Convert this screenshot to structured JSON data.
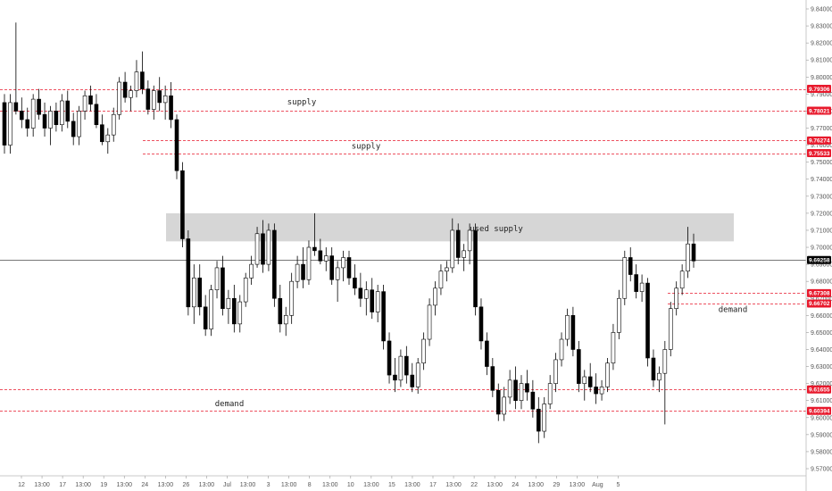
{
  "chart_data": {
    "type": "candlestick",
    "x_ticks": [
      "12",
      "13:00",
      "17",
      "13:00",
      "19",
      "13:00",
      "24",
      "13:00",
      "26",
      "13:00",
      "Jul",
      "13:00",
      "3",
      "13:00",
      "8",
      "13:00",
      "10",
      "13:00",
      "15",
      "13:00",
      "17",
      "13:00",
      "22",
      "13:00",
      "24",
      "13:00",
      "29",
      "13:00",
      "Aug",
      "5"
    ],
    "y_ticks": [
      "9.84000",
      "9.83000",
      "9.82000",
      "9.81000",
      "9.80000",
      "9.79000",
      "9.78000",
      "9.77000",
      "9.76000",
      "9.75000",
      "9.74000",
      "9.73000",
      "9.72000",
      "9.71000",
      "9.70000",
      "9.69000",
      "9.68000",
      "9.67000",
      "9.66000",
      "9.65000",
      "9.64000",
      "9.63000",
      "9.62000",
      "9.61000",
      "9.60000",
      "9.59000",
      "9.58000",
      "9.57000"
    ],
    "y_values": [
      9.84,
      9.83,
      9.82,
      9.81,
      9.8,
      9.79,
      9.78,
      9.77,
      9.76,
      9.75,
      9.74,
      9.73,
      9.72,
      9.71,
      9.7,
      9.69,
      9.68,
      9.67,
      9.66,
      9.65,
      9.64,
      9.63,
      9.62,
      9.61,
      9.6,
      9.59,
      9.58,
      9.57
    ],
    "ylim": [
      9.5722,
      9.8438
    ],
    "current_price": {
      "label": "9.69258",
      "value": 9.69258
    },
    "levels": [
      {
        "label": "9.79306",
        "value": 9.79306,
        "color": "#e8192c"
      },
      {
        "label": "9.78021",
        "value": 9.78021,
        "color": "#e8192c"
      },
      {
        "label": "9.76274",
        "value": 9.76274,
        "color": "#e8192c"
      },
      {
        "label": "9.75533",
        "value": 9.75533,
        "color": "#e8192c"
      },
      {
        "label": "9.67308",
        "value": 9.67308,
        "color": "#e8192c"
      },
      {
        "label": "9.66702",
        "value": 9.66702,
        "color": "#e8192c"
      },
      {
        "label": "9.61655",
        "value": 9.61655,
        "color": "#e8192c"
      },
      {
        "label": "9.60394",
        "value": 9.60394,
        "color": "#e8192c"
      }
    ],
    "zones": [
      {
        "label": "used supply",
        "top": 9.72,
        "bottom": 9.7035,
        "fill": "#d6d6d6"
      }
    ],
    "annotations": [
      {
        "text": "supply",
        "price": 9.7855
      },
      {
        "text": "supply",
        "price": 9.7595
      },
      {
        "text": "used supply",
        "price": 9.711
      },
      {
        "text": "demand",
        "price": 9.6635
      },
      {
        "text": "demand",
        "price": 9.6083
      }
    ],
    "candles": [
      [
        9.785,
        9.79,
        9.755,
        9.76
      ],
      [
        9.76,
        9.79,
        9.755,
        9.785
      ],
      [
        9.785,
        9.832,
        9.778,
        9.78
      ],
      [
        9.78,
        9.788,
        9.77,
        9.775
      ],
      [
        9.775,
        9.782,
        9.765,
        9.77
      ],
      [
        9.77,
        9.79,
        9.765,
        9.787
      ],
      [
        9.787,
        9.793,
        9.775,
        9.778
      ],
      [
        9.778,
        9.785,
        9.765,
        9.77
      ],
      [
        9.77,
        9.783,
        9.76,
        9.78
      ],
      [
        9.78,
        9.785,
        9.768,
        9.772
      ],
      [
        9.772,
        9.79,
        9.768,
        9.786
      ],
      [
        9.786,
        9.792,
        9.77,
        9.774
      ],
      [
        9.774,
        9.779,
        9.76,
        9.765
      ],
      [
        9.765,
        9.783,
        9.76,
        9.78
      ],
      [
        9.78,
        9.792,
        9.775,
        9.789
      ],
      [
        9.789,
        9.795,
        9.78,
        9.784
      ],
      [
        9.784,
        9.79,
        9.77,
        9.772
      ],
      [
        9.772,
        9.778,
        9.76,
        9.762
      ],
      [
        9.762,
        9.77,
        9.755,
        9.766
      ],
      [
        9.766,
        9.782,
        9.762,
        9.778
      ],
      [
        9.778,
        9.8,
        9.775,
        9.797
      ],
      [
        9.797,
        9.803,
        9.785,
        9.788
      ],
      [
        9.788,
        9.795,
        9.78,
        9.792
      ],
      [
        9.792,
        9.81,
        9.788,
        9.803
      ],
      [
        9.803,
        9.815,
        9.79,
        9.793
      ],
      [
        9.793,
        9.798,
        9.778,
        9.781
      ],
      [
        9.781,
        9.795,
        9.775,
        9.792
      ],
      [
        9.792,
        9.8,
        9.78,
        9.785
      ],
      [
        9.785,
        9.795,
        9.775,
        9.789
      ],
      [
        9.789,
        9.797,
        9.77,
        9.775
      ],
      [
        9.775,
        9.778,
        9.74,
        9.745
      ],
      [
        9.745,
        9.75,
        9.7,
        9.705
      ],
      [
        9.705,
        9.71,
        9.66,
        9.665
      ],
      [
        9.665,
        9.69,
        9.655,
        9.682
      ],
      [
        9.682,
        9.69,
        9.66,
        9.665
      ],
      [
        9.665,
        9.672,
        9.648,
        9.652
      ],
      [
        9.652,
        9.678,
        9.648,
        9.675
      ],
      [
        9.675,
        9.692,
        9.67,
        9.688
      ],
      [
        9.688,
        9.695,
        9.66,
        9.664
      ],
      [
        9.664,
        9.675,
        9.655,
        9.67
      ],
      [
        9.67,
        9.678,
        9.65,
        9.655
      ],
      [
        9.655,
        9.672,
        9.65,
        9.668
      ],
      [
        9.668,
        9.685,
        9.665,
        9.682
      ],
      [
        9.682,
        9.695,
        9.678,
        9.69
      ],
      [
        9.69,
        9.712,
        9.688,
        9.708
      ],
      [
        9.708,
        9.716,
        9.685,
        9.69
      ],
      [
        9.69,
        9.714,
        9.686,
        9.71
      ],
      [
        9.71,
        9.714,
        9.665,
        9.67
      ],
      [
        9.67,
        9.678,
        9.65,
        9.655
      ],
      [
        9.655,
        9.665,
        9.648,
        9.66
      ],
      [
        9.66,
        9.685,
        9.655,
        9.68
      ],
      [
        9.68,
        9.695,
        9.676,
        9.69
      ],
      [
        9.69,
        9.7,
        9.676,
        9.681
      ],
      [
        9.681,
        9.704,
        9.678,
        9.7
      ],
      [
        9.7,
        9.72,
        9.695,
        9.698
      ],
      [
        9.698,
        9.705,
        9.69,
        9.692
      ],
      [
        9.692,
        9.7,
        9.686,
        9.695
      ],
      [
        9.695,
        9.7,
        9.678,
        9.681
      ],
      [
        9.681,
        9.692,
        9.668,
        9.688
      ],
      [
        9.688,
        9.698,
        9.68,
        9.694
      ],
      [
        9.694,
        9.698,
        9.678,
        9.682
      ],
      [
        9.682,
        9.69,
        9.672,
        9.676
      ],
      [
        9.676,
        9.685,
        9.665,
        9.67
      ],
      [
        9.67,
        9.68,
        9.66,
        9.675
      ],
      [
        9.675,
        9.682,
        9.658,
        9.662
      ],
      [
        9.662,
        9.678,
        9.656,
        9.674
      ],
      [
        9.674,
        9.678,
        9.64,
        9.645
      ],
      [
        9.645,
        9.65,
        9.62,
        9.625
      ],
      [
        9.625,
        9.635,
        9.615,
        9.622
      ],
      [
        9.622,
        9.64,
        9.618,
        9.636
      ],
      [
        9.636,
        9.642,
        9.62,
        9.625
      ],
      [
        9.625,
        9.632,
        9.615,
        9.618
      ],
      [
        9.618,
        9.635,
        9.614,
        9.632
      ],
      [
        9.632,
        9.65,
        9.628,
        9.646
      ],
      [
        9.646,
        9.67,
        9.642,
        9.666
      ],
      [
        9.666,
        9.68,
        9.66,
        9.676
      ],
      [
        9.676,
        9.69,
        9.672,
        9.686
      ],
      [
        9.686,
        9.692,
        9.68,
        9.688
      ],
      [
        9.688,
        9.717,
        9.685,
        9.71
      ],
      [
        9.71,
        9.714,
        9.69,
        9.694
      ],
      [
        9.694,
        9.702,
        9.686,
        9.698
      ],
      [
        9.698,
        9.714,
        9.69,
        9.71
      ],
      [
        9.71,
        9.714,
        9.66,
        9.665
      ],
      [
        9.665,
        9.67,
        9.64,
        9.645
      ],
      [
        9.645,
        9.65,
        9.625,
        9.63
      ],
      [
        9.63,
        9.635,
        9.612,
        9.616
      ],
      [
        9.616,
        9.62,
        9.598,
        9.602
      ],
      [
        9.602,
        9.618,
        9.598,
        9.612
      ],
      [
        9.612,
        9.628,
        9.608,
        9.622
      ],
      [
        9.622,
        9.63,
        9.605,
        9.61
      ],
      [
        9.61,
        9.625,
        9.605,
        9.62
      ],
      [
        9.62,
        9.628,
        9.61,
        9.615
      ],
      [
        9.615,
        9.622,
        9.6,
        9.605
      ],
      [
        9.605,
        9.612,
        9.585,
        9.592
      ],
      [
        9.592,
        9.612,
        9.588,
        9.608
      ],
      [
        9.608,
        9.625,
        9.605,
        9.62
      ],
      [
        9.62,
        9.638,
        9.615,
        9.634
      ],
      [
        9.634,
        9.65,
        9.63,
        9.646
      ],
      [
        9.646,
        9.664,
        9.642,
        9.66
      ],
      [
        9.66,
        9.665,
        9.636,
        9.64
      ],
      [
        9.64,
        9.645,
        9.615,
        9.62
      ],
      [
        9.62,
        9.628,
        9.61,
        9.624
      ],
      [
        9.624,
        9.632,
        9.615,
        9.618
      ],
      [
        9.618,
        9.626,
        9.608,
        9.614
      ],
      [
        9.614,
        9.622,
        9.61,
        9.618
      ],
      [
        9.618,
        9.635,
        9.615,
        9.632
      ],
      [
        9.632,
        9.655,
        9.628,
        9.65
      ],
      [
        9.65,
        9.675,
        9.646,
        9.67
      ],
      [
        9.67,
        9.698,
        9.666,
        9.694
      ],
      [
        9.694,
        9.7,
        9.68,
        9.684
      ],
      [
        9.684,
        9.69,
        9.67,
        9.674
      ],
      [
        9.674,
        9.684,
        9.668,
        9.679
      ],
      [
        9.679,
        9.682,
        9.63,
        9.635
      ],
      [
        9.635,
        9.64,
        9.618,
        9.622
      ],
      [
        9.622,
        9.63,
        9.615,
        9.626
      ],
      [
        9.626,
        9.645,
        9.596,
        9.64
      ],
      [
        9.64,
        9.668,
        9.636,
        9.664
      ],
      [
        9.664,
        9.68,
        9.66,
        9.676
      ],
      [
        9.676,
        9.69,
        9.672,
        9.686
      ],
      [
        9.686,
        9.712,
        9.682,
        9.702
      ],
      [
        9.702,
        9.708,
        9.688,
        9.692
      ]
    ]
  }
}
